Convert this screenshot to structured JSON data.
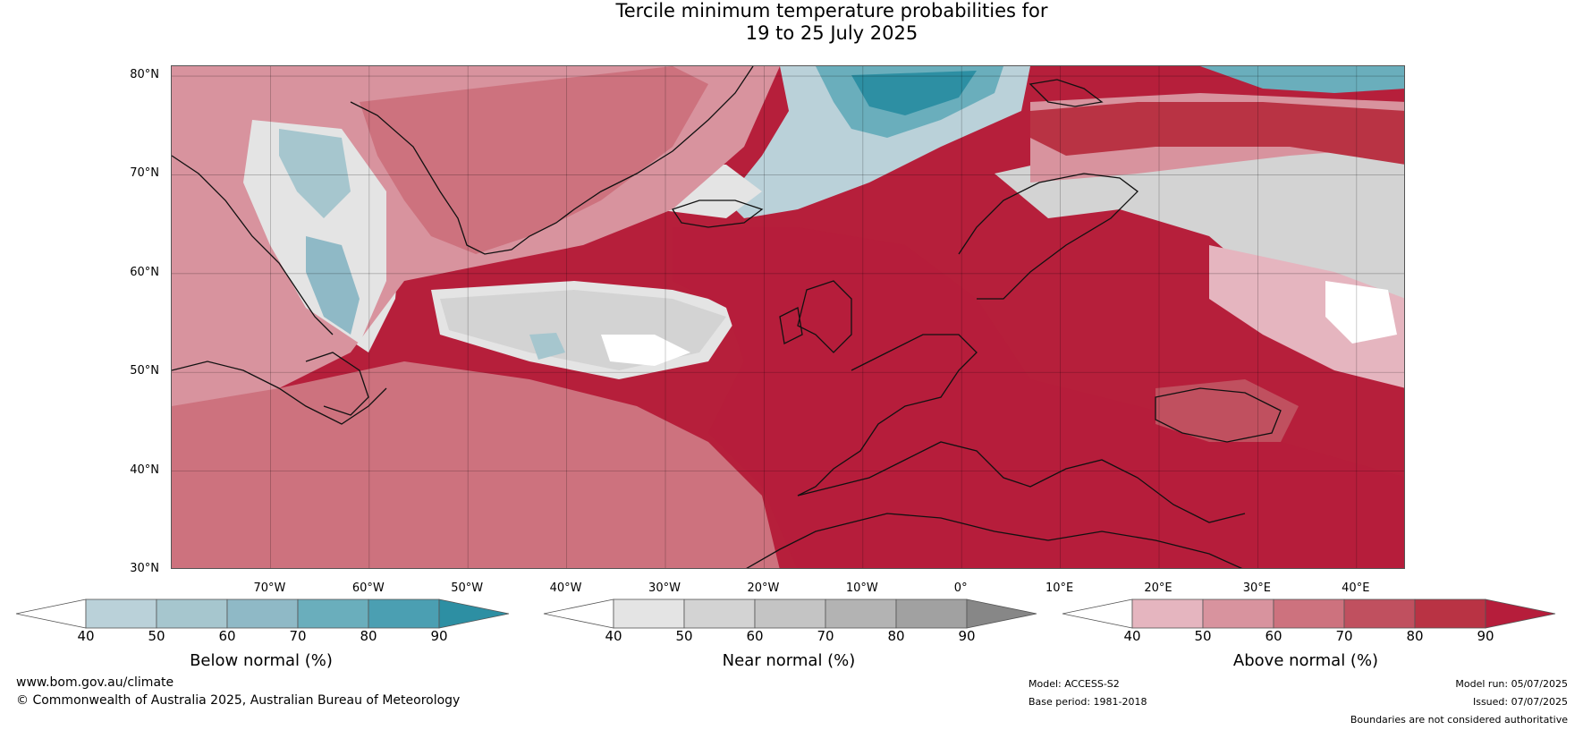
{
  "title": {
    "line1": "Tercile minimum temperature probabilities for",
    "line2": "19 to 25 July 2025"
  },
  "map": {
    "projection": "plate-carree",
    "lon_range": [
      -80,
      45
    ],
    "lat_range": [
      30,
      81
    ],
    "lat_ticks": [
      {
        "value": 80,
        "label": "80°N"
      },
      {
        "value": 70,
        "label": "70°N"
      },
      {
        "value": 60,
        "label": "60°N"
      },
      {
        "value": 50,
        "label": "50°N"
      },
      {
        "value": 40,
        "label": "40°N"
      },
      {
        "value": 30,
        "label": "30°N"
      }
    ],
    "lon_ticks": [
      {
        "value": -70,
        "label": "70°W"
      },
      {
        "value": -60,
        "label": "60°W"
      },
      {
        "value": -50,
        "label": "50°W"
      },
      {
        "value": -40,
        "label": "40°W"
      },
      {
        "value": -30,
        "label": "30°W"
      },
      {
        "value": -20,
        "label": "20°W"
      },
      {
        "value": -10,
        "label": "10°W"
      },
      {
        "value": 0,
        "label": "0°"
      },
      {
        "value": 10,
        "label": "10°E"
      },
      {
        "value": 20,
        "label": "20°E"
      },
      {
        "value": 30,
        "label": "30°E"
      },
      {
        "value": 40,
        "label": "40°E"
      }
    ],
    "background_color": "#b61f3b"
  },
  "colorbars": [
    {
      "label": "Below normal (%)",
      "ticks": [
        "40",
        "50",
        "60",
        "70",
        "80",
        "90"
      ],
      "colors": [
        "#ffffff",
        "#bad1d9",
        "#a6c6ce",
        "#8fb9c6",
        "#6aaebc",
        "#4b9fb2",
        "#2d8fa3"
      ]
    },
    {
      "label": "Near normal (%)",
      "ticks": [
        "40",
        "50",
        "60",
        "70",
        "80",
        "90"
      ],
      "colors": [
        "#ffffff",
        "#e4e4e4",
        "#d3d3d3",
        "#c4c4c4",
        "#b3b3b3",
        "#a1a1a1",
        "#878787"
      ]
    },
    {
      "label": "Above normal (%)",
      "ticks": [
        "40",
        "50",
        "60",
        "70",
        "80",
        "90"
      ],
      "colors": [
        "#ffffff",
        "#e5b5bf",
        "#d8939e",
        "#cd727e",
        "#c0505f",
        "#b93344",
        "#b61d3b"
      ]
    }
  ],
  "footer": {
    "website": "www.bom.gov.au/climate",
    "copyright": "© Commonwealth of Australia 2025, Australian Bureau of Meteorology",
    "model": "Model: ACCESS-S2",
    "base_period": "Base period: 1981-2018",
    "model_run": "Model run: 05/07/2025",
    "issued": "Issued: 07/07/2025",
    "disclaimer": "Boundaries are not considered authoritative"
  }
}
